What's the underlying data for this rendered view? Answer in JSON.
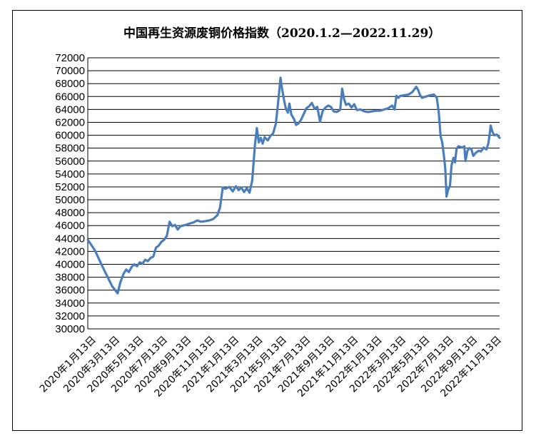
{
  "chart_data": {
    "type": "line",
    "title": "中国再生资源废铜价格指数（2020.1.2—2022.11.29）",
    "xlabel": "",
    "ylabel": "",
    "ylim": [
      30000,
      72000
    ],
    "yticks": [
      30000,
      32000,
      34000,
      36000,
      38000,
      40000,
      42000,
      44000,
      46000,
      48000,
      50000,
      52000,
      54000,
      56000,
      58000,
      60000,
      62000,
      64000,
      66000,
      68000,
      70000,
      72000
    ],
    "grid": true,
    "legend": "none",
    "line_color": "#4a7ebb",
    "x_tick_labels": [
      "2020年1月13日",
      "2020年3月13日",
      "2020年5月13日",
      "2020年7月13日",
      "2020年9月13日",
      "2020年11月13日",
      "2021年1月13日",
      "2021年3月13日",
      "2021年5月13日",
      "2021年7月13日",
      "2021年9月13日",
      "2021年11月13日",
      "2022年1月13日",
      "2022年3月13日",
      "2022年5月13日",
      "2022年7月13日",
      "2022年9月13日",
      "2022年11月13日"
    ],
    "series": [
      {
        "points": [
          [
            "2020-01-02",
            43800
          ],
          [
            "2020-01-20",
            42200
          ],
          [
            "2020-02-10",
            39500
          ],
          [
            "2020-03-05",
            36600
          ],
          [
            "2020-03-19",
            35500
          ],
          [
            "2020-03-26",
            37200
          ],
          [
            "2020-04-03",
            38500
          ],
          [
            "2020-04-10",
            39200
          ],
          [
            "2020-04-17",
            38800
          ],
          [
            "2020-04-24",
            39600
          ],
          [
            "2020-05-01",
            40000
          ],
          [
            "2020-05-08",
            39700
          ],
          [
            "2020-05-15",
            40300
          ],
          [
            "2020-05-22",
            40100
          ],
          [
            "2020-05-29",
            40700
          ],
          [
            "2020-06-05",
            40500
          ],
          [
            "2020-06-12",
            41000
          ],
          [
            "2020-06-19",
            41200
          ],
          [
            "2020-06-26",
            42600
          ],
          [
            "2020-07-03",
            42900
          ],
          [
            "2020-07-10",
            43500
          ],
          [
            "2020-07-17",
            43800
          ],
          [
            "2020-07-24",
            44400
          ],
          [
            "2020-07-31",
            46600
          ],
          [
            "2020-08-07",
            45900
          ],
          [
            "2020-08-14",
            46100
          ],
          [
            "2020-08-21",
            45400
          ],
          [
            "2020-08-28",
            45900
          ],
          [
            "2020-09-10",
            46100
          ],
          [
            "2020-09-20",
            46300
          ],
          [
            "2020-10-01",
            46500
          ],
          [
            "2020-10-10",
            46800
          ],
          [
            "2020-10-20",
            46600
          ],
          [
            "2020-11-01",
            46700
          ],
          [
            "2020-11-10",
            46800
          ],
          [
            "2020-11-20",
            47000
          ],
          [
            "2020-12-01",
            47600
          ],
          [
            "2020-12-08",
            48800
          ],
          [
            "2020-12-15",
            51900
          ],
          [
            "2020-12-22",
            51700
          ],
          [
            "2021-01-01",
            52000
          ],
          [
            "2021-01-10",
            51300
          ],
          [
            "2021-01-18",
            52100
          ],
          [
            "2021-01-25",
            51500
          ],
          [
            "2021-02-01",
            51900
          ],
          [
            "2021-02-08",
            51200
          ],
          [
            "2021-02-15",
            51800
          ],
          [
            "2021-02-22",
            51100
          ],
          [
            "2021-03-01",
            53000
          ],
          [
            "2021-03-08",
            58500
          ],
          [
            "2021-03-13",
            61100
          ],
          [
            "2021-03-18",
            58900
          ],
          [
            "2021-03-23",
            59600
          ],
          [
            "2021-03-28",
            58700
          ],
          [
            "2021-04-02",
            59700
          ],
          [
            "2021-04-10",
            59200
          ],
          [
            "2021-04-17",
            59900
          ],
          [
            "2021-04-24",
            60300
          ],
          [
            "2021-05-01",
            61800
          ],
          [
            "2021-05-06",
            64600
          ],
          [
            "2021-05-10",
            67000
          ],
          [
            "2021-05-13",
            68900
          ],
          [
            "2021-05-17",
            67200
          ],
          [
            "2021-05-22",
            65500
          ],
          [
            "2021-05-27",
            64100
          ],
          [
            "2021-06-01",
            63500
          ],
          [
            "2021-06-05",
            64900
          ],
          [
            "2021-06-10",
            63200
          ],
          [
            "2021-06-17",
            62500
          ],
          [
            "2021-06-22",
            61600
          ],
          [
            "2021-06-28",
            61800
          ],
          [
            "2021-07-05",
            62400
          ],
          [
            "2021-07-12",
            63300
          ],
          [
            "2021-07-19",
            64200
          ],
          [
            "2021-07-26",
            64500
          ],
          [
            "2021-08-02",
            65000
          ],
          [
            "2021-08-09",
            64100
          ],
          [
            "2021-08-16",
            64400
          ],
          [
            "2021-08-23",
            62100
          ],
          [
            "2021-08-30",
            63800
          ],
          [
            "2021-09-06",
            64300
          ],
          [
            "2021-09-13",
            64600
          ],
          [
            "2021-09-20",
            64400
          ],
          [
            "2021-09-27",
            63700
          ],
          [
            "2021-10-04",
            63600
          ],
          [
            "2021-10-11",
            63800
          ],
          [
            "2021-10-14",
            64000
          ],
          [
            "2021-10-19",
            67200
          ],
          [
            "2021-10-24",
            65600
          ],
          [
            "2021-10-29",
            64700
          ],
          [
            "2021-11-05",
            64900
          ],
          [
            "2021-11-12",
            64300
          ],
          [
            "2021-11-19",
            64800
          ],
          [
            "2021-11-26",
            63900
          ],
          [
            "2021-12-05",
            64000
          ],
          [
            "2021-12-15",
            63700
          ],
          [
            "2021-12-25",
            63600
          ],
          [
            "2022-01-05",
            63700
          ],
          [
            "2022-01-15",
            63800
          ],
          [
            "2022-01-25",
            63800
          ],
          [
            "2022-02-05",
            64000
          ],
          [
            "2022-02-15",
            64200
          ],
          [
            "2022-02-25",
            64600
          ],
          [
            "2022-03-03",
            64000
          ],
          [
            "2022-03-08",
            66100
          ],
          [
            "2022-03-13",
            65800
          ],
          [
            "2022-03-18",
            66100
          ],
          [
            "2022-03-28",
            66200
          ],
          [
            "2022-04-08",
            66300
          ],
          [
            "2022-04-18",
            66700
          ],
          [
            "2022-04-28",
            67500
          ],
          [
            "2022-05-03",
            67000
          ],
          [
            "2022-05-08",
            66200
          ],
          [
            "2022-05-13",
            65800
          ],
          [
            "2022-05-23",
            66000
          ],
          [
            "2022-06-03",
            66200
          ],
          [
            "2022-06-13",
            66300
          ],
          [
            "2022-06-20",
            65800
          ],
          [
            "2022-06-25",
            63600
          ],
          [
            "2022-06-30",
            59800
          ],
          [
            "2022-07-04",
            58900
          ],
          [
            "2022-07-08",
            57000
          ],
          [
            "2022-07-12",
            54800
          ],
          [
            "2022-07-15",
            50500
          ],
          [
            "2022-07-19",
            51500
          ],
          [
            "2022-07-24",
            52200
          ],
          [
            "2022-07-28",
            55300
          ],
          [
            "2022-08-02",
            56500
          ],
          [
            "2022-08-06",
            55800
          ],
          [
            "2022-08-10",
            57900
          ],
          [
            "2022-08-15",
            58300
          ],
          [
            "2022-08-20",
            58200
          ],
          [
            "2022-08-25",
            58100
          ],
          [
            "2022-08-30",
            58300
          ],
          [
            "2022-09-02",
            56000
          ],
          [
            "2022-09-07",
            57600
          ],
          [
            "2022-09-12",
            58000
          ],
          [
            "2022-09-17",
            57900
          ],
          [
            "2022-09-22",
            56800
          ],
          [
            "2022-09-29",
            57300
          ],
          [
            "2022-10-06",
            57600
          ],
          [
            "2022-10-12",
            57500
          ],
          [
            "2022-10-19",
            58100
          ],
          [
            "2022-10-26",
            57800
          ],
          [
            "2022-10-31",
            58700
          ],
          [
            "2022-11-03",
            60000
          ],
          [
            "2022-11-06",
            61500
          ],
          [
            "2022-11-10",
            60600
          ],
          [
            "2022-11-15",
            60000
          ],
          [
            "2022-11-22",
            60100
          ],
          [
            "2022-11-29",
            59600
          ]
        ]
      }
    ]
  }
}
